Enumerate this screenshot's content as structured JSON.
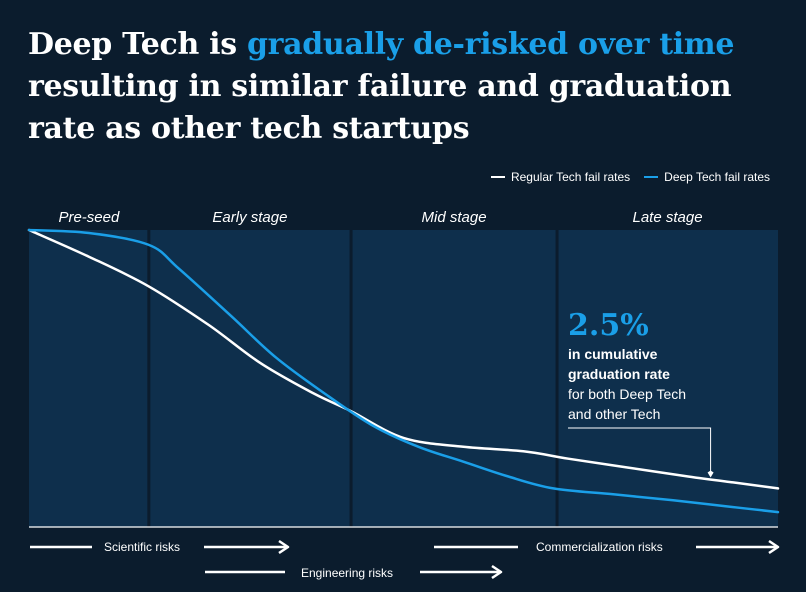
{
  "headline": {
    "part1": "Deep Tech is ",
    "accent": "gradually de-risked over time",
    "part2": " resulting in similar failure and graduation rate as other tech startups"
  },
  "colors": {
    "background": "#0b1c2d",
    "panel": "#0e2f4c",
    "regular": "#ffffff",
    "deep": "#1a9fe8"
  },
  "chart_data": {
    "type": "line",
    "title": "Deep Tech is gradually de-risked over time resulting in similar failure and graduation rate as other tech startups",
    "xlabel": "",
    "ylabel": "",
    "xlim": [
      0,
      100
    ],
    "ylim": [
      0,
      100
    ],
    "grid": false,
    "legend_position": "top-right",
    "stages": [
      {
        "label": "Pre-seed",
        "start": 0,
        "end": 16
      },
      {
        "label": "Early stage",
        "start": 16,
        "end": 43
      },
      {
        "label": "Mid stage",
        "start": 43,
        "end": 70.5
      },
      {
        "label": "Late stage",
        "start": 70.5,
        "end": 100
      }
    ],
    "series": [
      {
        "name": "Regular Tech fail rates",
        "x": [
          0,
          8,
          16,
          24,
          31,
          38,
          43,
          50,
          58,
          66,
          72,
          80,
          88,
          94,
          100
        ],
        "y": [
          100,
          91,
          81,
          68,
          55,
          45,
          39,
          30,
          27,
          25.5,
          23,
          20,
          17,
          15,
          13
        ]
      },
      {
        "name": "Deep Tech fail rates",
        "x": [
          0,
          8,
          16,
          20,
          27,
          33,
          40,
          46,
          52,
          58,
          64,
          70,
          78,
          86,
          93,
          100
        ],
        "y": [
          100,
          99,
          95,
          87,
          71,
          57,
          44,
          34,
          27,
          22,
          17,
          13,
          11,
          9,
          7,
          5
        ]
      }
    ],
    "annotation": {
      "value": "2.5%",
      "line1": "in cumulative",
      "line2": "graduation rate",
      "line3": "for both Deep Tech",
      "line4": "and other Tech",
      "target_x": 91
    }
  },
  "risks": {
    "scientific": "Scientific risks",
    "engineering": "Engineering risks",
    "commercialization": "Commercialization risks"
  }
}
